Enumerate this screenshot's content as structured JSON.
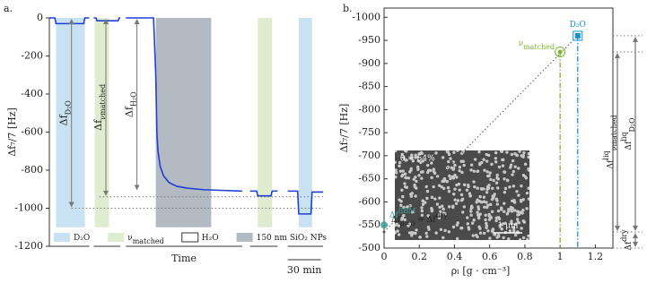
{
  "chart_data": [
    {
      "type": "line",
      "label": "a.",
      "ylabel": "Δf₇/7 [Hz]",
      "xlabel": "Time",
      "xlim": [
        0,
        255
      ],
      "ylim": [
        -1200,
        0
      ],
      "yticks": [
        0,
        -200,
        -400,
        -600,
        -800,
        -1000,
        -1200
      ],
      "span_y": [
        -1100,
        0
      ],
      "shades": [
        {
          "name": "D₂O",
          "color": "#c9e2f1",
          "spans": [
            [
              6,
              32
            ],
            [
              225,
              237
            ]
          ]
        },
        {
          "name": "ν",
          "name_sub": "matched",
          "color": "#e0ecd0",
          "spans": [
            [
              41,
              54
            ],
            [
              188,
              201
            ]
          ]
        },
        {
          "name": "H₂O",
          "color": "#ffffff",
          "spans": []
        },
        {
          "name": "150 nm SiO₂ NPs",
          "color": "#b4bac2",
          "spans": [
            [
              96,
              146
            ]
          ]
        }
      ],
      "series": [
        {
          "color": "#1f3fd6",
          "x": [
            0,
            5,
            6,
            31,
            32,
            36
          ],
          "values": [
            0,
            0,
            -30,
            -30,
            0,
            0
          ]
        },
        {
          "color": "#1f3fd6",
          "x": [
            40,
            42,
            43,
            62,
            63,
            64
          ],
          "values": [
            0,
            0,
            -15,
            -15,
            0,
            0
          ]
        },
        {
          "color": "#1f3fd6",
          "x": [
            69,
            94,
            96,
            97,
            98,
            100,
            103,
            108,
            115,
            125,
            140,
            160,
            174
          ],
          "values": [
            0,
            0,
            -300,
            -600,
            -700,
            -780,
            -830,
            -865,
            -885,
            -895,
            -903,
            -907,
            -910
          ]
        },
        {
          "color": "#1f3fd6",
          "x": [
            181,
            187,
            188,
            200,
            201,
            206
          ],
          "values": [
            -910,
            -910,
            -935,
            -935,
            -910,
            -910
          ]
        },
        {
          "color": "#1f3fd6",
          "x": [
            215,
            224,
            225,
            236,
            237,
            247
          ],
          "values": [
            -910,
            -910,
            -1030,
            -1030,
            -915,
            -915
          ]
        }
      ],
      "refs": [
        {
          "y": -940,
          "x": [
            45,
            247
          ]
        },
        {
          "y": -1000,
          "x": [
            20,
            247
          ]
        }
      ],
      "annotations": [
        {
          "text": "Δf",
          "sub": "D₂O",
          "x": 20,
          "y": [
            0,
            -1000
          ]
        },
        {
          "text": "Δf",
          "sub": "νmatched",
          "x": 51,
          "y": [
            0,
            -940
          ]
        },
        {
          "text": "Δf",
          "sub": "H₂O",
          "x": 79,
          "y": [
            0,
            -910
          ]
        }
      ],
      "scalebar": {
        "value": 30,
        "label": "30 min"
      }
    },
    {
      "type": "scatter",
      "label": "b.",
      "ylabel": "Δf₇/7 [Hz]",
      "xlabel": "ρₗ [g · cm⁻³]",
      "xlim": [
        0,
        1.3
      ],
      "ylim": [
        -500,
        -1020
      ],
      "xticks": [
        0,
        0.2,
        0.4,
        0.6,
        0.8,
        1,
        1.2
      ],
      "yticks": [
        -1000,
        -950,
        -900,
        -850,
        -800,
        -750,
        -700,
        -650,
        -600,
        -550,
        -500
      ],
      "points": [
        {
          "name": "D₂O",
          "color": "#1a8fd0",
          "marker": "square",
          "x": 1.1,
          "y": -960
        },
        {
          "name": "ν",
          "name_sub": "matched",
          "color": "#7cb82f",
          "marker": "circle",
          "x": 1.0,
          "y": -925
        },
        {
          "name": "Δf",
          "name_sub": "ρ=0",
          "name_rest": " = Δf",
          "name_sup": "dry",
          "color": "#555555",
          "marker": "dot",
          "x": 0,
          "y": -535
        }
      ],
      "band": {
        "name": "Δf",
        "name_sup": "SBM",
        "color": "#3f9e98",
        "x": 0,
        "y": [
          -520,
          -580
        ]
      },
      "fit": {
        "x": [
          0,
          1.1
        ],
        "values": [
          -535,
          -960
        ]
      },
      "brackets": [
        {
          "text": "Δf",
          "sup": "liq",
          "sub": "D₂O",
          "y": [
            -960,
            -535
          ]
        },
        {
          "text": "Δf",
          "sup": "liq",
          "sub": "νmatched",
          "y": [
            -925,
            -535
          ]
        },
        {
          "text": "Δf",
          "sup": "dry",
          "y": [
            -535,
            -500
          ]
        }
      ],
      "inset": {
        "coverage": "θ = 54%",
        "scale": "1 μm"
      }
    }
  ]
}
